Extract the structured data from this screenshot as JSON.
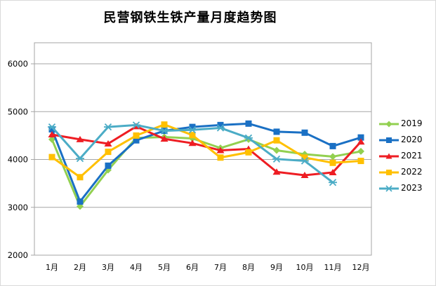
{
  "title": "民营钢铁生铁产量月度趋势图",
  "chart_data": {
    "type": "line",
    "title": "民营钢铁生铁产量月度趋势图",
    "categories": [
      "1月",
      "2月",
      "3月",
      "4月",
      "5月",
      "6月",
      "7月",
      "8月",
      "9月",
      "10月",
      "11月",
      "12月"
    ],
    "y_ticks": [
      2000,
      3000,
      4000,
      5000,
      6000
    ],
    "ylim": [
      2000,
      6440
    ],
    "grid": true,
    "legend_position": "right",
    "axis_color": "#a6a6a6",
    "series": [
      {
        "name": "2019",
        "color": "#92D050",
        "marker": "diamond",
        "values": [
          4420,
          3020,
          3780,
          4450,
          4470,
          4440,
          4240,
          4420,
          4190,
          4110,
          4060,
          4170
        ]
      },
      {
        "name": "2020",
        "color": "#1A70C4",
        "marker": "square",
        "values": [
          4630,
          3120,
          3870,
          4400,
          4600,
          4680,
          4720,
          4750,
          4580,
          4560,
          4280,
          4460
        ]
      },
      {
        "name": "2021",
        "color": "#EE1D23",
        "marker": "triangle",
        "values": [
          4520,
          4420,
          4330,
          4690,
          4430,
          4340,
          4190,
          4220,
          3740,
          3670,
          3730,
          4370
        ]
      },
      {
        "name": "2022",
        "color": "#FFC000",
        "marker": "square",
        "values": [
          4050,
          3630,
          4160,
          4500,
          4730,
          4510,
          4040,
          4150,
          4400,
          4040,
          3930,
          3970
        ]
      },
      {
        "name": "2023",
        "color": "#4BACC6",
        "marker": "asterisk",
        "values": [
          4680,
          4020,
          4680,
          4720,
          4600,
          4620,
          4660,
          4450,
          4010,
          3970,
          3520,
          null
        ]
      }
    ]
  }
}
